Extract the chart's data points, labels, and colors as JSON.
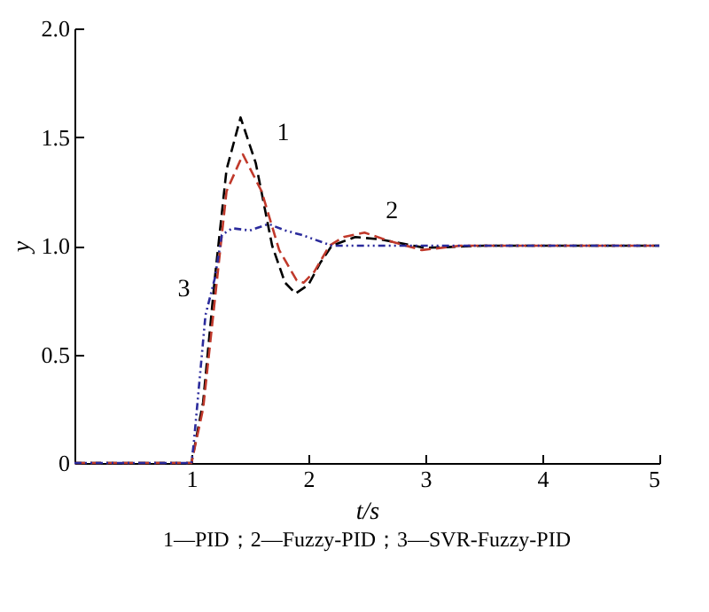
{
  "chart_data": {
    "type": "line",
    "xlabel": "t/s",
    "ylabel": "y",
    "xlim": [
      0,
      5
    ],
    "xticks": [
      1,
      2,
      3,
      4,
      5
    ],
    "ylim": [
      0,
      2
    ],
    "yticks": [
      {
        "value": 0,
        "label": "0"
      },
      {
        "value": 0.5,
        "label": "0.5"
      },
      {
        "value": 1,
        "label": "1.0"
      },
      {
        "value": 1.5,
        "label": "1.5"
      },
      {
        "value": 2,
        "label": "2.0"
      }
    ],
    "grid": false,
    "marker": "none",
    "series": [
      {
        "color": "#000000",
        "line_style": "dashed",
        "x": [
          0,
          1,
          1.1,
          1.2,
          1.3,
          1.42,
          1.55,
          1.69,
          1.8,
          1.89,
          2.0,
          2.1,
          2.2,
          2.4,
          2.6,
          3.0,
          3.5,
          5
        ],
        "values": [
          0,
          0,
          0.28,
          0.85,
          1.35,
          1.59,
          1.38,
          1.0,
          0.83,
          0.78,
          0.82,
          0.92,
          1.0,
          1.04,
          1.03,
          0.99,
          1.0,
          1.0
        ]
      },
      {
        "color": "#c0392b",
        "line_style": "dashed",
        "x": [
          0,
          1,
          1.1,
          1.2,
          1.3,
          1.44,
          1.6,
          1.75,
          1.9,
          1.96,
          2.05,
          2.18,
          2.3,
          2.48,
          2.7,
          2.97,
          3.3,
          5
        ],
        "values": [
          0,
          0,
          0.25,
          0.75,
          1.25,
          1.42,
          1.25,
          0.98,
          0.84,
          0.83,
          0.88,
          1.0,
          1.04,
          1.06,
          1.02,
          0.98,
          1.0,
          1.0
        ]
      },
      {
        "color": "#2b2b9c",
        "line_style": "dotted",
        "x": [
          0,
          1,
          1.02,
          1.12,
          1.2,
          1.26,
          1.35,
          1.5,
          1.66,
          1.8,
          1.94,
          2.2,
          5
        ],
        "values": [
          0,
          0,
          0.09,
          0.68,
          0.85,
          1.05,
          1.08,
          1.07,
          1.1,
          1.07,
          1.05,
          1.0,
          1.0
        ]
      }
    ],
    "annotations": [
      {
        "text": "1",
        "x": 1.55,
        "y": 1.42
      },
      {
        "text": "2",
        "x": 2.48,
        "y": 1.06
      },
      {
        "text": "3",
        "x": 1.2,
        "y": 0.85
      },
      "1—PID；2—Fuzzy-PID；3—SVR-Fuzzy-PID"
    ]
  }
}
